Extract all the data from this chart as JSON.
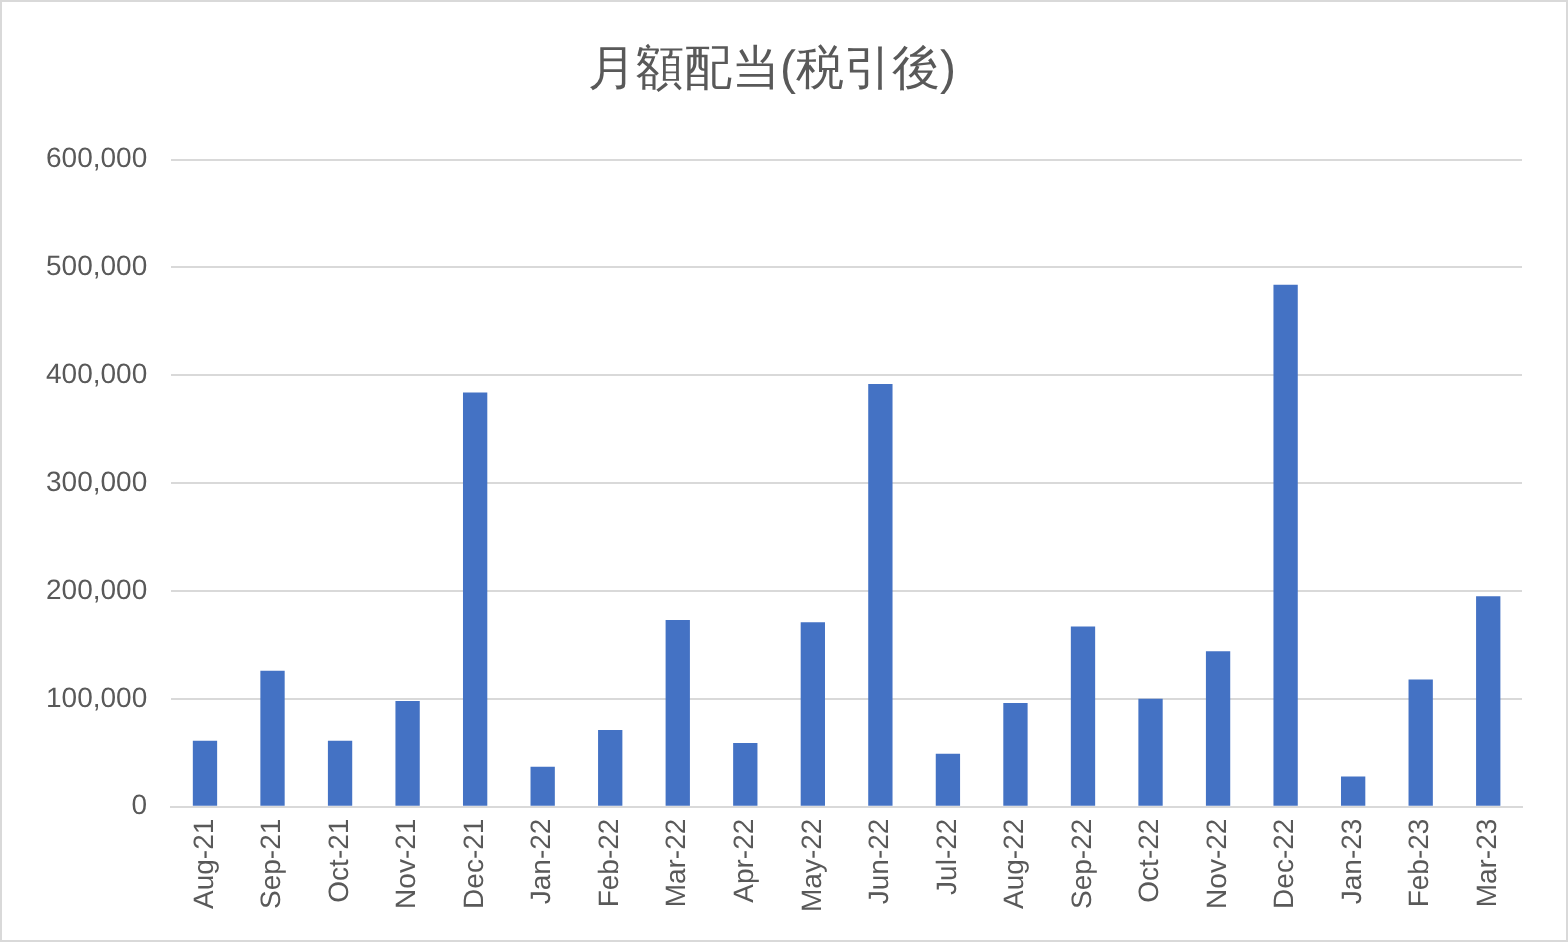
{
  "chart_data": {
    "type": "bar",
    "title": "月額配当(税引後)",
    "categories": [
      "Aug-21",
      "Sep-21",
      "Oct-21",
      "Nov-21",
      "Dec-21",
      "Jan-22",
      "Feb-22",
      "Mar-22",
      "Apr-22",
      "May-22",
      "Jun-22",
      "Jul-22",
      "Aug-22",
      "Sep-22",
      "Oct-22",
      "Nov-22",
      "Dec-22",
      "Jan-23",
      "Feb-23",
      "Mar-23"
    ],
    "values": [
      61000,
      126000,
      61000,
      98000,
      384000,
      37000,
      71000,
      173000,
      59000,
      171000,
      392000,
      49000,
      96000,
      167000,
      100000,
      144000,
      484000,
      28000,
      118000,
      195000
    ],
    "color": "#4472c4",
    "ylim": [
      0,
      600000
    ],
    "yticks": [
      {
        "value": 0,
        "label": "0"
      },
      {
        "value": 100000,
        "label": "100,000"
      },
      {
        "value": 200000,
        "label": "200,000"
      },
      {
        "value": 300000,
        "label": "300,000"
      },
      {
        "value": 400000,
        "label": "400,000"
      },
      {
        "value": 500000,
        "label": "500,000"
      },
      {
        "value": 600000,
        "label": "600,000"
      }
    ],
    "grid": "y",
    "legend": false
  }
}
